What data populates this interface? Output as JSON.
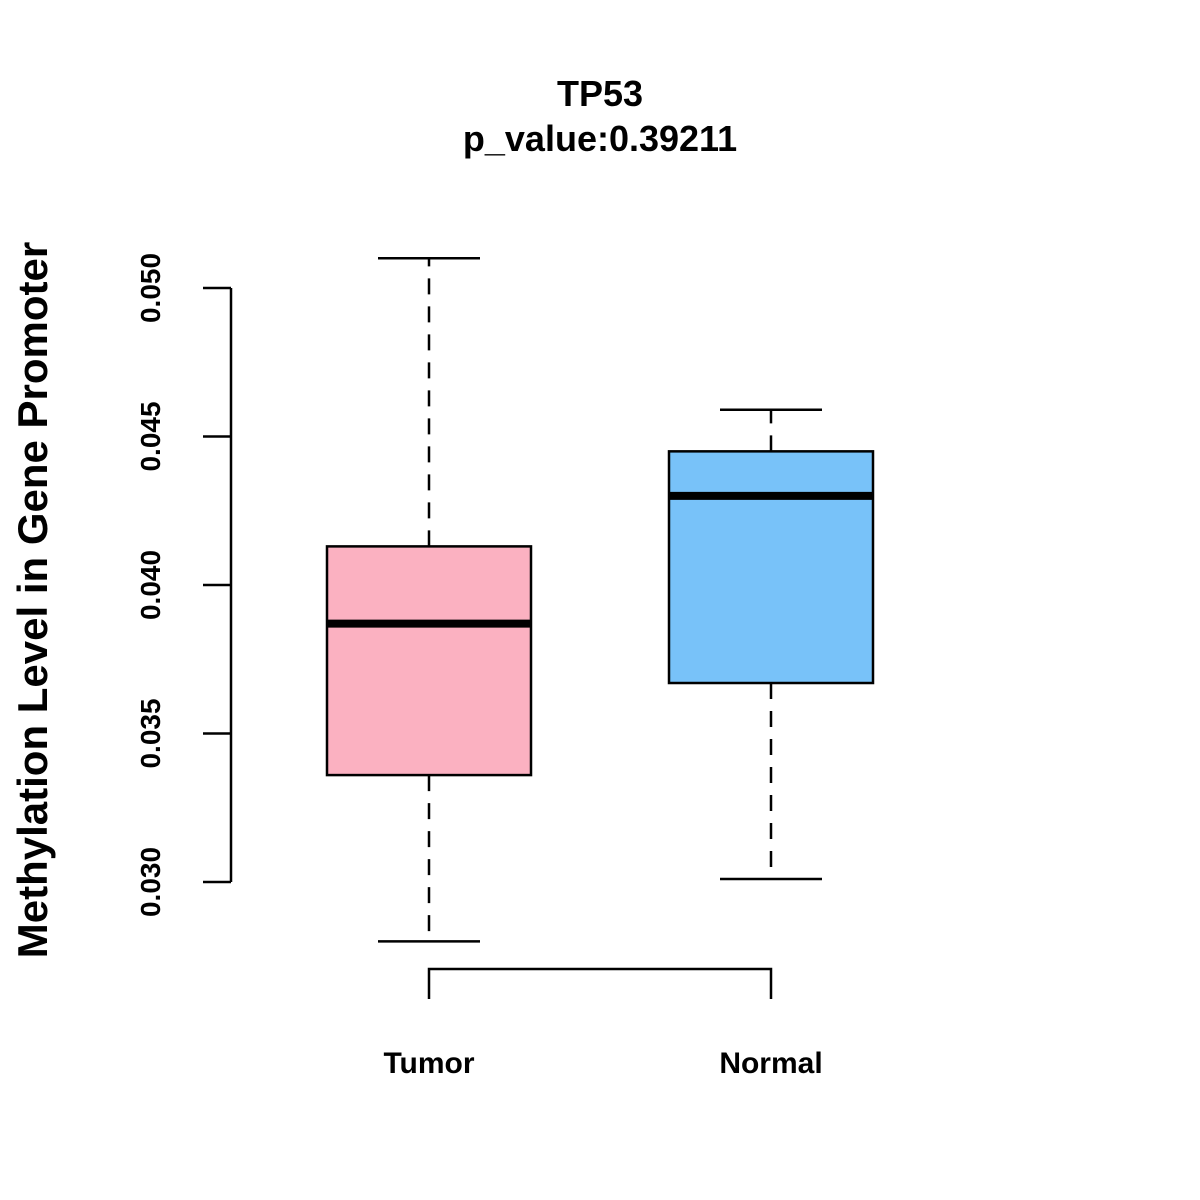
{
  "chart_data": {
    "type": "boxplot",
    "title": "TP53",
    "subtitle": "p_value:0.39211",
    "xlabel": "",
    "ylabel": "Methylation Level in Gene Promoter",
    "categories": [
      "Tumor",
      "Normal"
    ],
    "series": [
      {
        "name": "Tumor",
        "color": "#FBB1C1",
        "whisker_low": 0.028,
        "q1": 0.0336,
        "median": 0.0387,
        "q3": 0.0413,
        "whisker_high": 0.051
      },
      {
        "name": "Normal",
        "color": "#78C2F9",
        "whisker_low": 0.0301,
        "q1": 0.0367,
        "median": 0.043,
        "q3": 0.0445,
        "whisker_high": 0.0459
      }
    ],
    "yticks": [
      0.03,
      0.035,
      0.04,
      0.045,
      0.05
    ],
    "ytick_labels": [
      "0.030",
      "0.035",
      "0.040",
      "0.045",
      "0.050"
    ],
    "ylim": [
      0.03,
      0.05
    ],
    "grid": false,
    "comparison_bracket": [
      "Tumor",
      "Normal"
    ]
  }
}
